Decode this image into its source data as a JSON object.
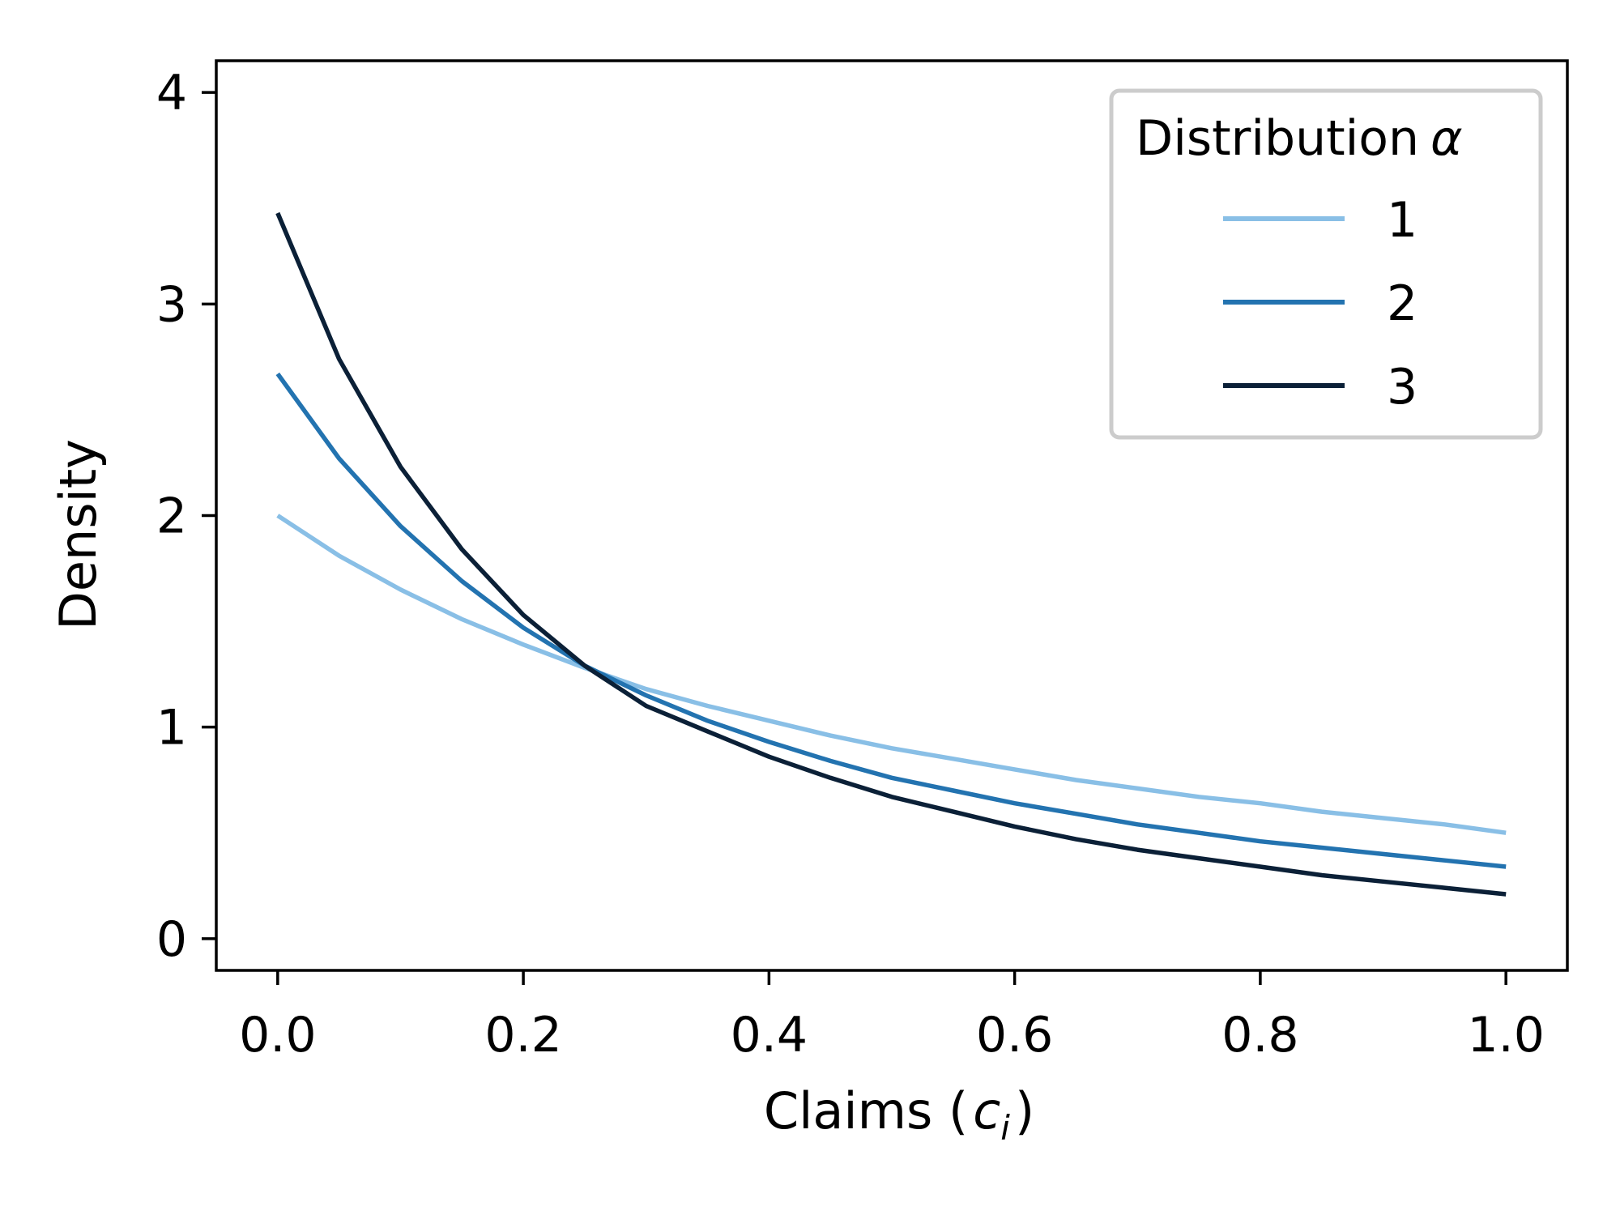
{
  "chart_data": {
    "type": "line",
    "title": "",
    "xlabel": {
      "main": "Claims (",
      "symbol": "c",
      "subscript": "i",
      "close": ")"
    },
    "ylabel": "Density",
    "xlim": [
      -0.05,
      1.05
    ],
    "ylim": [
      -0.15,
      4.15
    ],
    "x_ticks": [
      0.0,
      0.2,
      0.4,
      0.6,
      0.8,
      1.0
    ],
    "x_tick_labels": [
      "0.0",
      "0.2",
      "0.4",
      "0.6",
      "0.8",
      "1.0"
    ],
    "y_ticks": [
      0,
      1,
      2,
      3,
      4
    ],
    "y_tick_labels": [
      "0",
      "1",
      "2",
      "3",
      "4"
    ],
    "grid": false,
    "legend": {
      "title_text": "Distribution",
      "title_symbol": "α",
      "placement": "top-right"
    },
    "series": [
      {
        "name": "1",
        "color": "#89bfe6",
        "x": [
          0.0,
          0.05,
          0.1,
          0.15,
          0.2,
          0.25,
          0.3,
          0.35,
          0.4,
          0.45,
          0.5,
          0.55,
          0.6,
          0.65,
          0.7,
          0.75,
          0.8,
          0.85,
          0.9,
          0.95,
          1.0
        ],
        "y": [
          2.0,
          1.81,
          1.65,
          1.51,
          1.39,
          1.28,
          1.18,
          1.1,
          1.03,
          0.96,
          0.9,
          0.85,
          0.8,
          0.75,
          0.71,
          0.67,
          0.64,
          0.6,
          0.57,
          0.54,
          0.5
        ]
      },
      {
        "name": "2",
        "color": "#2373b0",
        "x": [
          0.0,
          0.05,
          0.1,
          0.15,
          0.2,
          0.25,
          0.3,
          0.35,
          0.4,
          0.45,
          0.5,
          0.55,
          0.6,
          0.65,
          0.7,
          0.75,
          0.8,
          0.85,
          0.9,
          0.95,
          1.0
        ],
        "y": [
          2.67,
          2.27,
          1.95,
          1.69,
          1.47,
          1.29,
          1.15,
          1.03,
          0.93,
          0.84,
          0.76,
          0.7,
          0.64,
          0.59,
          0.54,
          0.5,
          0.46,
          0.43,
          0.4,
          0.37,
          0.34
        ]
      },
      {
        "name": "3",
        "color": "#0b2037",
        "x": [
          0.0,
          0.05,
          0.1,
          0.15,
          0.2,
          0.25,
          0.3,
          0.35,
          0.4,
          0.45,
          0.5,
          0.55,
          0.6,
          0.65,
          0.7,
          0.75,
          0.8,
          0.85,
          0.9,
          0.95,
          1.0
        ],
        "y": [
          3.43,
          2.74,
          2.23,
          1.84,
          1.53,
          1.29,
          1.1,
          0.98,
          0.86,
          0.76,
          0.67,
          0.6,
          0.53,
          0.47,
          0.42,
          0.38,
          0.34,
          0.3,
          0.27,
          0.24,
          0.21
        ]
      }
    ]
  }
}
